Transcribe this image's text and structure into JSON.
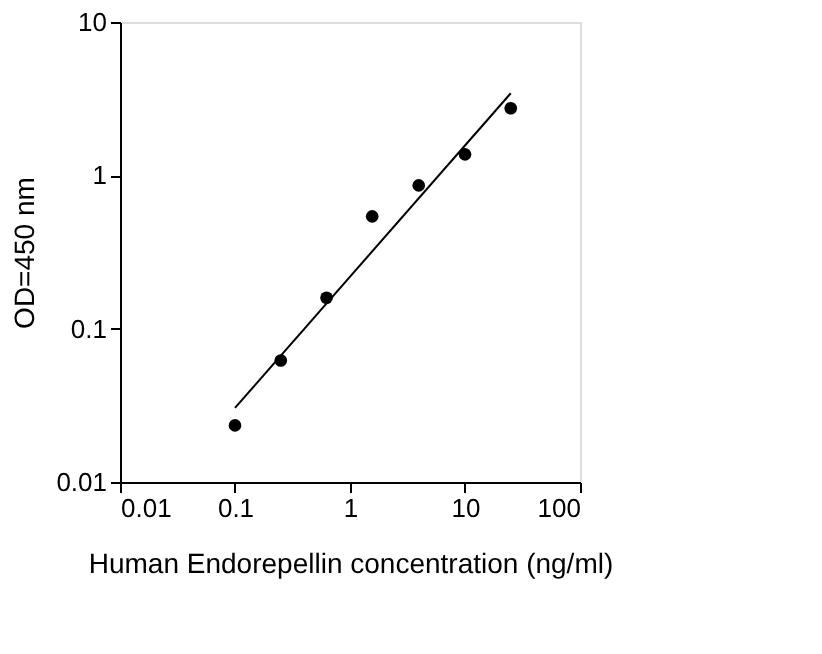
{
  "chart_data": {
    "type": "scatter",
    "xlabel": "Human Endorepellin concentration (ng/ml)",
    "ylabel": "OD=450 nm",
    "log": "xy",
    "grid": false,
    "marker": "circle",
    "xlim": [
      0.01,
      100
    ],
    "ylim": [
      0.01,
      10
    ],
    "xticks": [
      0.01,
      0.1,
      1,
      10,
      100
    ],
    "yticks": [
      0.01,
      0.1,
      1,
      10
    ],
    "series": [
      {
        "color": "#000000",
        "x": [
          0.1,
          0.25,
          0.625,
          1.56,
          3.96,
          10,
          25
        ],
        "values": [
          0.0234,
          0.062,
          0.159,
          0.54,
          0.86,
          1.37,
          2.74
        ]
      },
      {
        "type": "line",
        "color": "#000000",
        "marker": "none",
        "x": [
          0.1,
          25
        ],
        "values": [
          0.0304,
          3.43
        ]
      }
    ]
  }
}
